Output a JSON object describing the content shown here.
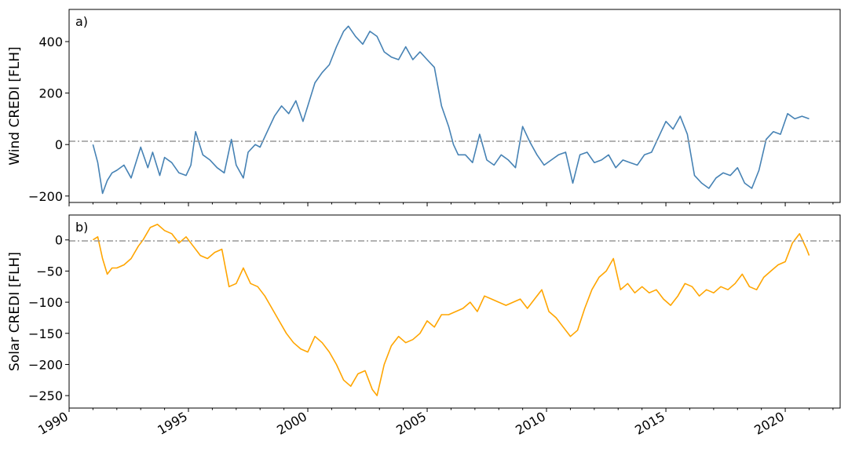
{
  "chart_data": [
    {
      "type": "line",
      "panel_label": "a)",
      "ylabel": "Wind CREDI [FLH]",
      "ylim": [
        -225,
        525
      ],
      "yticks": [
        -200,
        0,
        200,
        400
      ],
      "yticklabels": [
        "−200",
        "0",
        "200",
        "400"
      ],
      "xlim": [
        1990.0,
        2022.3
      ],
      "show_xticklabels": false,
      "grid": false,
      "reference_line": {
        "y": 0,
        "style": "dash-dot",
        "color": "#999999"
      },
      "series": [
        {
          "color": "#4682b4",
          "x": [
            1991.0,
            1991.2,
            1991.4,
            1991.6,
            1991.8,
            1992.0,
            1992.3,
            1992.6,
            1992.9,
            1993.0,
            1993.3,
            1993.5,
            1993.8,
            1994.0,
            1994.3,
            1994.6,
            1994.9,
            1995.1,
            1995.3,
            1995.6,
            1995.9,
            1996.2,
            1996.5,
            1996.8,
            1997.0,
            1997.3,
            1997.5,
            1997.8,
            1998.0,
            1998.3,
            1998.6,
            1998.9,
            1999.2,
            1999.5,
            1999.8,
            2000.0,
            2000.3,
            2000.6,
            2000.9,
            2001.2,
            2001.5,
            2001.7,
            2002.0,
            2002.3,
            2002.6,
            2002.9,
            2003.2,
            2003.5,
            2003.8,
            2004.1,
            2004.4,
            2004.7,
            2005.0,
            2005.3,
            2005.6,
            2005.9,
            2006.1,
            2006.3,
            2006.6,
            2006.9,
            2007.2,
            2007.5,
            2007.8,
            2008.1,
            2008.4,
            2008.7,
            2009.0,
            2009.3,
            2009.6,
            2009.9,
            2010.2,
            2010.5,
            2010.8,
            2011.1,
            2011.4,
            2011.7,
            2012.0,
            2012.3,
            2012.6,
            2012.9,
            2013.2,
            2013.5,
            2013.8,
            2014.1,
            2014.4,
            2014.7,
            2015.0,
            2015.3,
            2015.6,
            2015.9,
            2016.2,
            2016.5,
            2016.8,
            2017.1,
            2017.4,
            2017.7,
            2018.0,
            2018.3,
            2018.6,
            2018.9,
            2019.2,
            2019.5,
            2019.8,
            2020.1,
            2020.4,
            2020.7,
            2021.0
          ],
          "values": [
            0,
            -70,
            -190,
            -140,
            -110,
            -100,
            -80,
            -130,
            -40,
            -10,
            -90,
            -30,
            -120,
            -50,
            -70,
            -110,
            -120,
            -80,
            50,
            -40,
            -60,
            -90,
            -110,
            20,
            -80,
            -130,
            -30,
            0,
            -10,
            50,
            110,
            150,
            120,
            170,
            90,
            150,
            240,
            280,
            310,
            380,
            440,
            460,
            420,
            390,
            440,
            420,
            360,
            340,
            330,
            380,
            330,
            360,
            330,
            300,
            150,
            70,
            0,
            -40,
            -40,
            -70,
            40,
            -60,
            -80,
            -40,
            -60,
            -90,
            70,
            10,
            -40,
            -80,
            -60,
            -40,
            -30,
            -150,
            -40,
            -30,
            -70,
            -60,
            -40,
            -90,
            -60,
            -70,
            -80,
            -40,
            -30,
            30,
            90,
            60,
            110,
            40,
            -120,
            -150,
            -170,
            -130,
            -110,
            -120,
            -90,
            -150,
            -170,
            -100,
            20,
            50,
            40,
            120,
            100,
            110,
            100
          ]
        }
      ]
    },
    {
      "type": "line",
      "panel_label": "b)",
      "ylabel": "Solar CREDI [FLH]",
      "ylim": [
        -270,
        40
      ],
      "yticks": [
        -250,
        -200,
        -150,
        -100,
        -50,
        0
      ],
      "yticklabels": [
        "−250",
        "−200",
        "−150",
        "−100",
        "−50",
        "0"
      ],
      "xlim": [
        1990.0,
        2022.3
      ],
      "xticks": [
        1990,
        1995,
        2000,
        2005,
        2010,
        2015,
        2020
      ],
      "xticklabels": [
        "1990",
        "1995",
        "2000",
        "2005",
        "2010",
        "2015",
        "2020"
      ],
      "grid": false,
      "reference_line": {
        "y": 0,
        "style": "dash-dot",
        "color": "#999999"
      },
      "series": [
        {
          "color": "#ffa500",
          "x": [
            1991.0,
            1991.2,
            1991.4,
            1991.6,
            1991.8,
            1992.0,
            1992.3,
            1992.6,
            1992.9,
            1993.1,
            1993.4,
            1993.7,
            1994.0,
            1994.3,
            1994.6,
            1994.9,
            1995.2,
            1995.5,
            1995.8,
            1996.1,
            1996.4,
            1996.7,
            1997.0,
            1997.3,
            1997.6,
            1997.9,
            1998.2,
            1998.5,
            1998.8,
            1999.1,
            1999.4,
            1999.7,
            2000.0,
            2000.3,
            2000.6,
            2000.9,
            2001.2,
            2001.5,
            2001.8,
            2002.1,
            2002.4,
            2002.7,
            2002.9,
            2003.2,
            2003.5,
            2003.8,
            2004.1,
            2004.4,
            2004.7,
            2005.0,
            2005.3,
            2005.6,
            2005.9,
            2006.2,
            2006.5,
            2006.8,
            2007.1,
            2007.4,
            2007.7,
            2008.0,
            2008.3,
            2008.6,
            2008.9,
            2009.2,
            2009.5,
            2009.8,
            2010.1,
            2010.4,
            2010.7,
            2011.0,
            2011.3,
            2011.6,
            2011.9,
            2012.2,
            2012.5,
            2012.8,
            2013.1,
            2013.4,
            2013.7,
            2014.0,
            2014.3,
            2014.6,
            2014.9,
            2015.2,
            2015.5,
            2015.8,
            2016.1,
            2016.4,
            2016.7,
            2017.0,
            2017.3,
            2017.6,
            2017.9,
            2018.2,
            2018.5,
            2018.8,
            2019.1,
            2019.4,
            2019.7,
            2020.0,
            2020.3,
            2020.6,
            2020.9,
            2021.0
          ],
          "values": [
            0,
            5,
            -30,
            -55,
            -45,
            -45,
            -40,
            -30,
            -10,
            0,
            20,
            25,
            15,
            10,
            -5,
            5,
            -10,
            -25,
            -30,
            -20,
            -15,
            -75,
            -70,
            -45,
            -70,
            -75,
            -90,
            -110,
            -130,
            -150,
            -165,
            -175,
            -180,
            -155,
            -165,
            -180,
            -200,
            -225,
            -235,
            -215,
            -210,
            -240,
            -250,
            -200,
            -170,
            -155,
            -165,
            -160,
            -150,
            -130,
            -140,
            -120,
            -120,
            -115,
            -110,
            -100,
            -115,
            -90,
            -95,
            -100,
            -105,
            -100,
            -95,
            -110,
            -95,
            -80,
            -115,
            -125,
            -140,
            -155,
            -145,
            -110,
            -80,
            -60,
            -50,
            -30,
            -80,
            -70,
            -85,
            -75,
            -85,
            -80,
            -95,
            -105,
            -90,
            -70,
            -75,
            -90,
            -80,
            -85,
            -75,
            -80,
            -70,
            -55,
            -75,
            -80,
            -60,
            -50,
            -40,
            -35,
            -5,
            10,
            -15,
            -25
          ]
        }
      ]
    }
  ]
}
